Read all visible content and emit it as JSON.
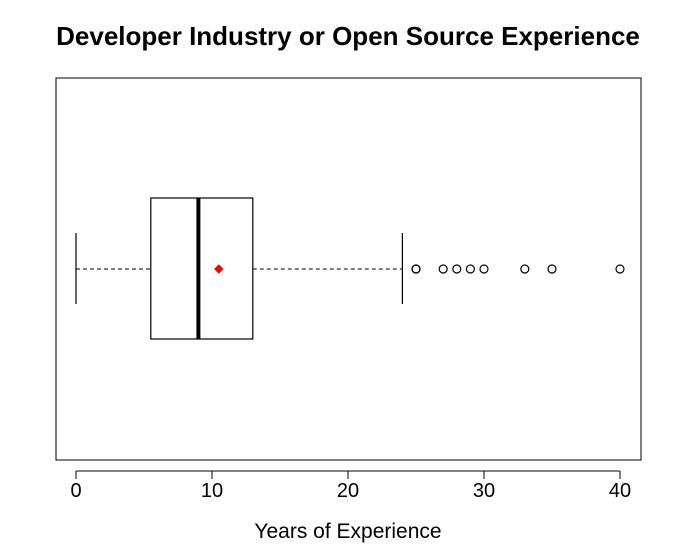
{
  "chart_data": {
    "type": "boxplot",
    "orientation": "horizontal",
    "title": "Developer Industry or Open Source Experience",
    "xlabel": "Years of Experience",
    "xlim": [
      0,
      40
    ],
    "xticks": [
      0,
      10,
      20,
      30,
      40
    ],
    "box": {
      "whisker_low": 0,
      "q1": 5.5,
      "median": 9,
      "q3": 13,
      "whisker_high": 24,
      "mean": 10.5
    },
    "outliers": [
      25,
      25,
      27,
      28,
      29,
      30,
      33,
      35,
      40
    ],
    "mean_color": "#ff0000",
    "grid": false
  }
}
